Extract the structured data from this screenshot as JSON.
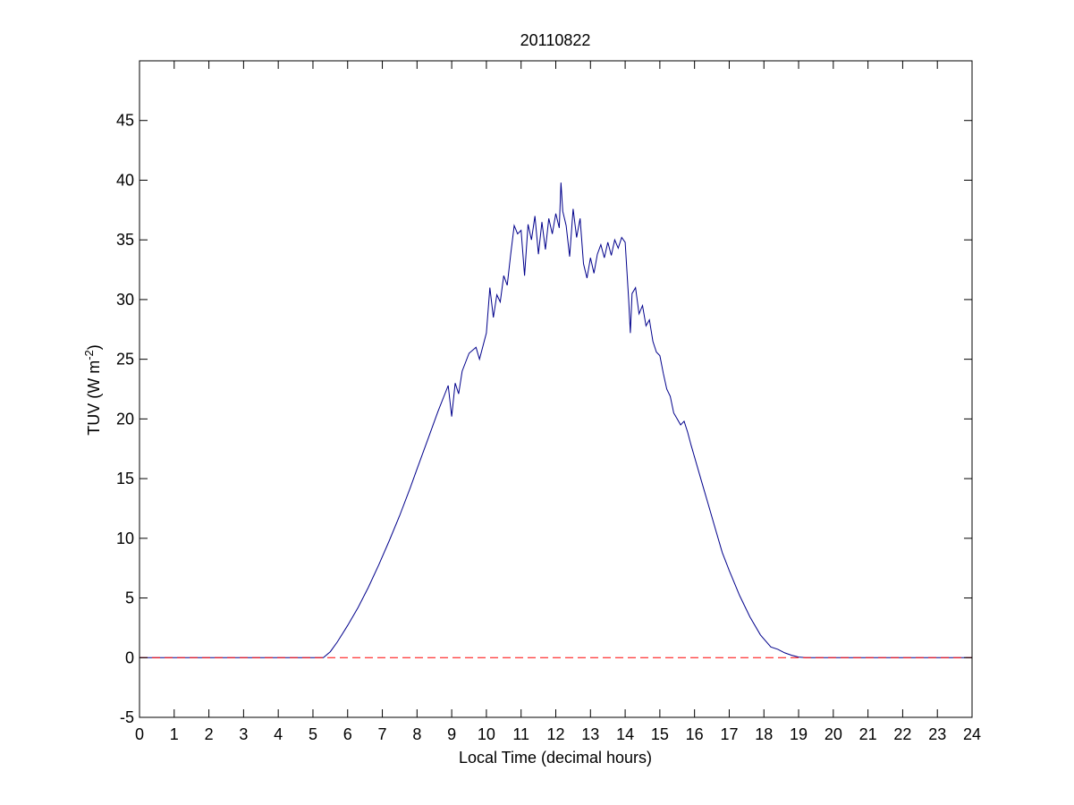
{
  "chart_data": {
    "type": "line",
    "title": "20110822",
    "xlabel": "Local Time (decimal hours)",
    "ylabel": {
      "main": "TUV (W m",
      "sup": "-2",
      "close": ")"
    },
    "xlim": [
      0,
      24
    ],
    "ylim": [
      -5,
      50
    ],
    "xticks": [
      0,
      1,
      2,
      3,
      4,
      5,
      6,
      7,
      8,
      9,
      10,
      11,
      12,
      13,
      14,
      15,
      16,
      17,
      18,
      19,
      20,
      21,
      22,
      23,
      24
    ],
    "yticks": [
      -5,
      0,
      5,
      10,
      15,
      20,
      25,
      30,
      35,
      40,
      45
    ],
    "grid": false,
    "series": [
      {
        "color": "#00008b",
        "style": "solid",
        "x": [
          0,
          5.0,
          5.3,
          5.5,
          5.7,
          6.0,
          6.3,
          6.6,
          6.9,
          7.2,
          7.5,
          7.8,
          8.0,
          8.3,
          8.6,
          8.9,
          9.0,
          9.1,
          9.2,
          9.3,
          9.5,
          9.7,
          9.8,
          10.0,
          10.1,
          10.2,
          10.3,
          10.4,
          10.5,
          10.6,
          10.7,
          10.8,
          10.9,
          11.0,
          11.1,
          11.2,
          11.3,
          11.4,
          11.5,
          11.6,
          11.7,
          11.8,
          11.9,
          12.0,
          12.1,
          12.15,
          12.2,
          12.3,
          12.4,
          12.5,
          12.6,
          12.7,
          12.8,
          12.9,
          13.0,
          13.1,
          13.2,
          13.3,
          13.4,
          13.5,
          13.6,
          13.7,
          13.8,
          13.9,
          14.0,
          14.1,
          14.15,
          14.2,
          14.3,
          14.4,
          14.5,
          14.6,
          14.7,
          14.8,
          14.9,
          15.0,
          15.1,
          15.2,
          15.3,
          15.4,
          15.5,
          15.6,
          15.7,
          15.8,
          15.9,
          16.0,
          16.2,
          16.4,
          16.6,
          16.8,
          17.0,
          17.3,
          17.6,
          17.9,
          18.2,
          18.4,
          18.6,
          18.8,
          19.0,
          19.2,
          19.5,
          20.0,
          24.0
        ],
        "y": [
          0,
          0,
          0,
          0.5,
          1.3,
          2.7,
          4.2,
          5.9,
          7.8,
          9.8,
          11.9,
          14.2,
          15.8,
          18.2,
          20.6,
          22.8,
          20.2,
          23.0,
          22.1,
          24.0,
          25.5,
          26.0,
          25.0,
          27.2,
          31.0,
          28.5,
          30.4,
          29.8,
          32.0,
          31.2,
          33.8,
          36.2,
          35.5,
          35.8,
          32.0,
          36.3,
          35.0,
          37.0,
          33.8,
          36.5,
          34.2,
          36.8,
          35.5,
          37.2,
          36.0,
          39.8,
          37.4,
          36.2,
          33.6,
          37.6,
          35.2,
          36.8,
          33.0,
          31.8,
          33.5,
          32.2,
          33.8,
          34.6,
          33.5,
          34.8,
          33.7,
          35.0,
          34.3,
          35.2,
          34.8,
          30.0,
          27.2,
          30.5,
          31.0,
          28.8,
          29.5,
          27.8,
          28.3,
          26.5,
          25.6,
          25.3,
          23.8,
          22.5,
          21.9,
          20.5,
          20.0,
          19.5,
          19.8,
          18.9,
          17.8,
          16.8,
          14.8,
          12.8,
          10.8,
          8.8,
          7.3,
          5.2,
          3.4,
          1.9,
          0.9,
          0.7,
          0.4,
          0.2,
          0.05,
          0,
          0,
          0,
          0
        ]
      },
      {
        "color": "#ff0000",
        "style": "dashed",
        "x": [
          0,
          24
        ],
        "y": [
          0,
          0
        ]
      }
    ]
  }
}
